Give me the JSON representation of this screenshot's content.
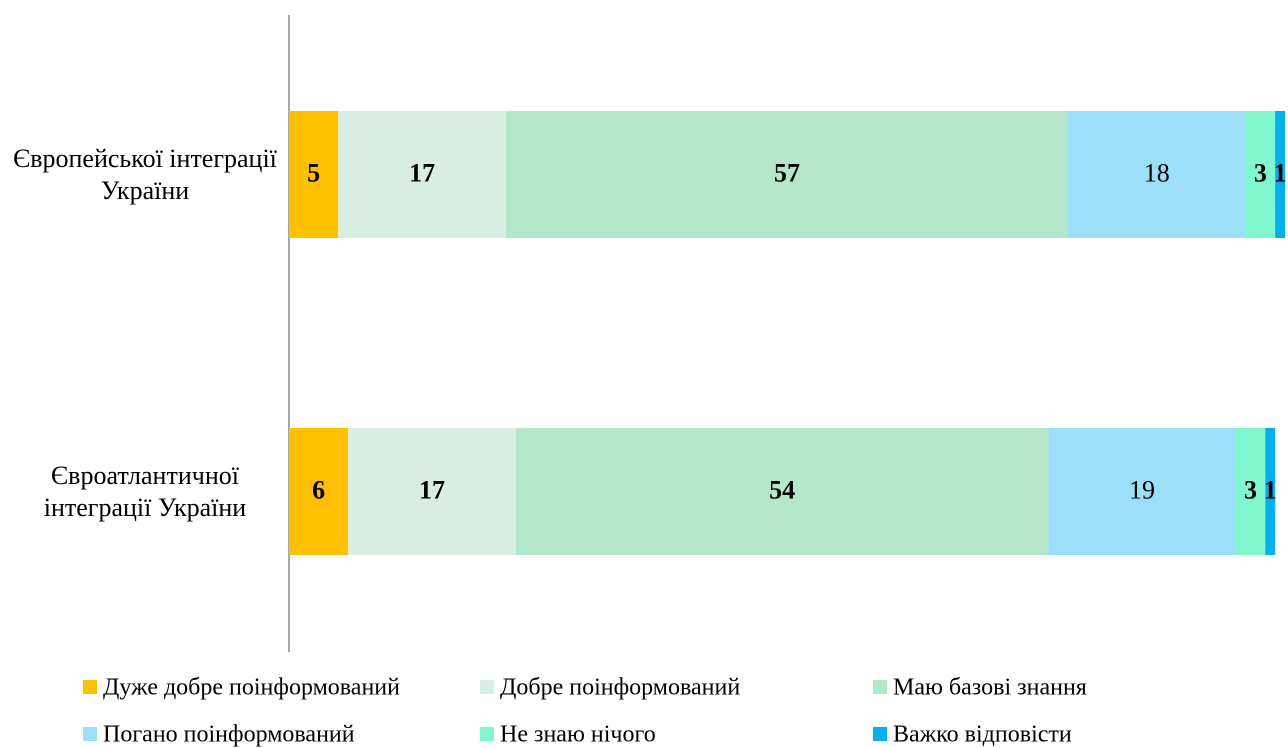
{
  "chart_data": {
    "type": "stacked-barh",
    "categories": [
      "Європейської інтеграції України",
      "Євроатлантичної інтеграції України"
    ],
    "series": [
      {
        "name": "Дуже добре поінформований",
        "color": "#ffc000",
        "label_bold": true,
        "values": [
          5,
          6
        ]
      },
      {
        "name": "Добре поінформований",
        "color": "#d9eee3",
        "label_bold": true,
        "values": [
          17,
          17
        ]
      },
      {
        "name": "Маю базові знання",
        "color": "#b4e6ca",
        "label_bold": true,
        "values": [
          57,
          54
        ]
      },
      {
        "name": "Погано поінформований",
        "color": "#9ddff8",
        "label_bold": false,
        "values": [
          18,
          19
        ]
      },
      {
        "name": "Не знаю нічого",
        "color": "#80f7cc",
        "label_bold": true,
        "values": [
          3,
          3
        ]
      },
      {
        "name": "Важко відповісти",
        "color": "#00b0f0",
        "label_bold": true,
        "values": [
          1,
          1
        ]
      }
    ],
    "xlim": [
      0,
      101
    ],
    "legend": "bottom"
  }
}
